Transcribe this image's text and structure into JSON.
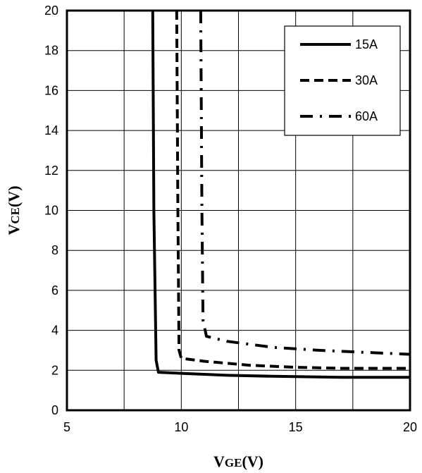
{
  "chart_data": {
    "type": "line",
    "xlabel": {
      "main": "V",
      "sub": "GE",
      "unit": "(V)"
    },
    "ylabel": {
      "main": "V",
      "sub": "CE",
      "unit": "(V)"
    },
    "xlim": [
      5,
      20
    ],
    "ylim": [
      0,
      20
    ],
    "xticks": [
      5,
      10,
      15,
      20
    ],
    "yticks": [
      0,
      2,
      4,
      6,
      8,
      10,
      12,
      14,
      16,
      18,
      20
    ],
    "x_minor_grid": [
      7.5,
      12.5,
      17.5
    ],
    "grid": true,
    "legend_position": "top-right",
    "series": [
      {
        "name": "15A",
        "dash": "solid",
        "x": [
          8.75,
          8.8,
          8.9,
          9.0,
          10,
          12,
          14,
          17,
          20
        ],
        "y": [
          20,
          10,
          2.5,
          1.9,
          1.85,
          1.75,
          1.7,
          1.65,
          1.65
        ]
      },
      {
        "name": "30A",
        "dash": "dashed",
        "x": [
          9.8,
          9.85,
          9.9,
          10.0,
          11,
          13,
          15,
          17,
          20
        ],
        "y": [
          20,
          10,
          3.0,
          2.6,
          2.45,
          2.25,
          2.15,
          2.1,
          2.1
        ]
      },
      {
        "name": "60A",
        "dash": "dashdot",
        "x": [
          10.85,
          10.9,
          10.95,
          11.1,
          12,
          14,
          16,
          18,
          20
        ],
        "y": [
          20,
          10,
          4.5,
          3.7,
          3.45,
          3.15,
          3.0,
          2.9,
          2.8
        ]
      }
    ]
  }
}
